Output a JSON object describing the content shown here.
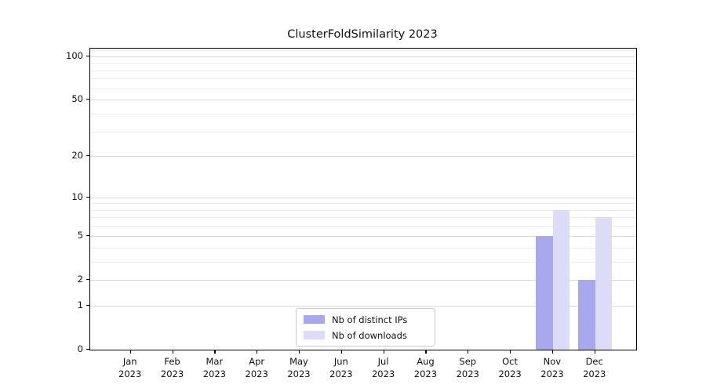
{
  "title": "ClusterFoldSimilarity 2023",
  "chart_data": {
    "type": "bar",
    "title": "ClusterFoldSimilarity 2023",
    "categories": [
      "Jan",
      "Feb",
      "Mar",
      "Apr",
      "May",
      "Jun",
      "Jul",
      "Aug",
      "Sep",
      "Oct",
      "Nov",
      "Dec"
    ],
    "category_year": "2023",
    "series": [
      {
        "name": "Nb of distinct IPs",
        "color": "#a8a8ee",
        "values": [
          0,
          0,
          0,
          0,
          0,
          0,
          0,
          0,
          0,
          0,
          5,
          2
        ]
      },
      {
        "name": "Nb of downloads",
        "color": "#dcdcf8",
        "values": [
          0,
          0,
          0,
          0,
          0,
          0,
          0,
          0,
          0,
          0,
          8,
          7
        ]
      }
    ],
    "xlabel": "",
    "ylabel": "",
    "yscale": "log1p",
    "ylim": [
      0,
      113
    ],
    "ytick_values": [
      0,
      1,
      2,
      5,
      10,
      20,
      50,
      100
    ],
    "minor_gridline_values": [
      3,
      4,
      6,
      7,
      8,
      9,
      30,
      40,
      60,
      70,
      80,
      90,
      110
    ],
    "grid": true,
    "legend_position": "lower-center-inside",
    "colors": {
      "major_grid": "#d9d9d9",
      "minor_grid": "#ededed",
      "axis": "#000000",
      "text": "#111111"
    }
  }
}
